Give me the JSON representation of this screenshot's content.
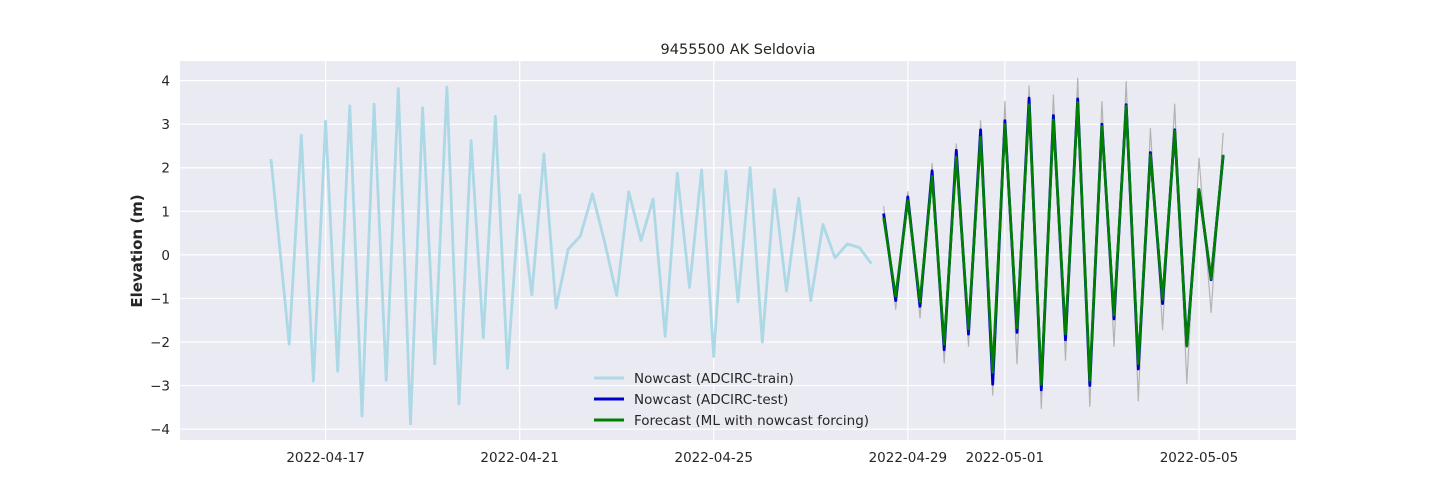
{
  "chart_data": {
    "type": "line",
    "title": "9455500 AK Seldovia",
    "xlabel": "",
    "ylabel": "Elevation (m)",
    "xlim": [
      "2022-04-14T00:00",
      "2022-05-07T00:00"
    ],
    "ylim": [
      -4.25,
      4.45
    ],
    "x_ticks": [
      "2022-04-17",
      "2022-04-21",
      "2022-04-25",
      "2022-04-29",
      "2022-05-01",
      "2022-05-05"
    ],
    "y_ticks": [
      4,
      3,
      2,
      1,
      0,
      -1,
      -2,
      -3,
      -4
    ],
    "y_tick_labels": [
      "4",
      "3",
      "2",
      "1",
      "0",
      "−1",
      "−2",
      "−3",
      "−4"
    ],
    "grid": true,
    "legend_position": "bottom-center",
    "series": [
      {
        "name": "Nowcast (ADCIRC-train)",
        "color": "#add8e6",
        "x": [
          "2022-04-15T21:00",
          "2022-04-16T06:00",
          "2022-04-16T12:00",
          "2022-04-16T18:00",
          "2022-04-17T00:00",
          "2022-04-17T06:00",
          "2022-04-17T12:00",
          "2022-04-17T18:00",
          "2022-04-18T00:00",
          "2022-04-18T06:00",
          "2022-04-18T12:00",
          "2022-04-18T18:00",
          "2022-04-19T00:00",
          "2022-04-19T06:00",
          "2022-04-19T12:00",
          "2022-04-19T18:00",
          "2022-04-20T00:00",
          "2022-04-20T06:00",
          "2022-04-20T12:00",
          "2022-04-20T18:00",
          "2022-04-21T00:00",
          "2022-04-21T06:00",
          "2022-04-21T12:00",
          "2022-04-21T18:00",
          "2022-04-22T00:00",
          "2022-04-22T06:00",
          "2022-04-22T12:00",
          "2022-04-22T18:00",
          "2022-04-23T00:00",
          "2022-04-23T06:00",
          "2022-04-23T12:00",
          "2022-04-23T18:00",
          "2022-04-24T00:00",
          "2022-04-24T06:00",
          "2022-04-24T12:00",
          "2022-04-24T18:00",
          "2022-04-25T00:00",
          "2022-04-25T06:00",
          "2022-04-25T12:00",
          "2022-04-25T18:00",
          "2022-04-26T00:00",
          "2022-04-26T06:00",
          "2022-04-26T12:00",
          "2022-04-26T18:00",
          "2022-04-27T00:00",
          "2022-04-27T06:00",
          "2022-04-27T12:00",
          "2022-04-27T18:00",
          "2022-04-28T00:00",
          "2022-04-28T06:00"
        ],
        "y": [
          2.2,
          -2.05,
          2.75,
          -2.9,
          3.07,
          -2.67,
          3.42,
          -3.7,
          3.46,
          -2.88,
          3.82,
          -3.88,
          3.38,
          -2.5,
          3.85,
          -3.42,
          2.62,
          -1.9,
          3.18,
          -2.6,
          1.37,
          -0.92,
          2.32,
          -1.22,
          0.13,
          0.43,
          1.4,
          0.3,
          -0.93,
          1.45,
          0.33,
          1.28,
          -1.87,
          1.88,
          -0.75,
          1.95,
          -2.33,
          1.92,
          -1.08,
          2.0,
          -2.0,
          1.5,
          -0.83,
          1.3,
          -1.05,
          0.7,
          -0.07,
          0.25,
          0.17,
          -0.2
        ]
      },
      {
        "name": "",
        "color": "#b3b3b3",
        "x": [
          "2022-04-28T12:00",
          "2022-04-28T18:00",
          "2022-04-29T00:00",
          "2022-04-29T06:00",
          "2022-04-29T12:00",
          "2022-04-29T18:00",
          "2022-04-30T00:00",
          "2022-04-30T06:00",
          "2022-04-30T12:00",
          "2022-04-30T18:00",
          "2022-05-01T00:00",
          "2022-05-01T06:00",
          "2022-05-01T12:00",
          "2022-05-01T18:00",
          "2022-05-02T00:00",
          "2022-05-02T06:00",
          "2022-05-02T12:00",
          "2022-05-02T18:00",
          "2022-05-03T00:00",
          "2022-05-03T06:00",
          "2022-05-03T12:00",
          "2022-05-03T18:00",
          "2022-05-04T00:00",
          "2022-05-04T06:00",
          "2022-05-04T12:00",
          "2022-05-04T18:00",
          "2022-05-05T00:00",
          "2022-05-05T06:00",
          "2022-05-05T12:00"
        ],
        "y": [
          1.12,
          -1.25,
          1.45,
          -1.45,
          2.1,
          -2.48,
          2.55,
          -2.1,
          3.08,
          -3.22,
          3.52,
          -2.5,
          3.88,
          -3.53,
          3.67,
          -2.42,
          4.05,
          -3.48,
          3.52,
          -2.1,
          3.98,
          -3.35,
          2.9,
          -1.72,
          3.46,
          -2.95,
          2.22,
          -1.32,
          2.8
        ]
      },
      {
        "name": "Nowcast (ADCIRC-test)",
        "color": "#0000cd",
        "x": [
          "2022-04-28T12:00",
          "2022-04-28T18:00",
          "2022-04-29T00:00",
          "2022-04-29T06:00",
          "2022-04-29T12:00",
          "2022-04-29T18:00",
          "2022-04-30T00:00",
          "2022-04-30T06:00",
          "2022-04-30T12:00",
          "2022-04-30T18:00",
          "2022-05-01T00:00",
          "2022-05-01T06:00",
          "2022-05-01T12:00",
          "2022-05-01T18:00",
          "2022-05-02T00:00",
          "2022-05-02T06:00",
          "2022-05-02T12:00",
          "2022-05-02T18:00",
          "2022-05-03T00:00",
          "2022-05-03T06:00",
          "2022-05-03T12:00",
          "2022-05-03T18:00",
          "2022-05-04T00:00",
          "2022-05-04T06:00",
          "2022-05-04T12:00",
          "2022-05-04T18:00",
          "2022-05-05T00:00",
          "2022-05-05T06:00",
          "2022-05-05T12:00"
        ],
        "y": [
          0.95,
          -1.05,
          1.33,
          -1.18,
          1.93,
          -2.18,
          2.4,
          -1.82,
          2.87,
          -2.97,
          3.08,
          -1.78,
          3.6,
          -3.1,
          3.2,
          -1.95,
          3.58,
          -3.0,
          3.0,
          -1.47,
          3.45,
          -2.62,
          2.35,
          -1.12,
          2.87,
          -2.08,
          1.5,
          -0.57,
          2.28
        ]
      },
      {
        "name": "Forecast (ML with nowcast forcing)",
        "color": "#008000",
        "x": [
          "2022-04-28T12:00",
          "2022-04-28T18:00",
          "2022-04-29T00:00",
          "2022-04-29T06:00",
          "2022-04-29T12:00",
          "2022-04-29T18:00",
          "2022-04-30T00:00",
          "2022-04-30T06:00",
          "2022-04-30T12:00",
          "2022-04-30T18:00",
          "2022-05-01T00:00",
          "2022-05-01T06:00",
          "2022-05-01T12:00",
          "2022-05-01T18:00",
          "2022-05-02T00:00",
          "2022-05-02T06:00",
          "2022-05-02T12:00",
          "2022-05-02T18:00",
          "2022-05-03T00:00",
          "2022-05-03T06:00",
          "2022-05-03T12:00",
          "2022-05-03T18:00",
          "2022-05-04T00:00",
          "2022-05-04T06:00",
          "2022-05-04T12:00",
          "2022-05-04T18:00",
          "2022-05-05T00:00",
          "2022-05-05T06:00",
          "2022-05-05T12:00"
        ],
        "y": [
          0.85,
          -0.95,
          1.25,
          -1.08,
          1.8,
          -2.05,
          2.25,
          -1.7,
          2.7,
          -2.7,
          3.0,
          -1.68,
          3.45,
          -2.98,
          3.1,
          -1.82,
          3.5,
          -2.88,
          2.95,
          -1.38,
          3.42,
          -2.5,
          2.3,
          -1.02,
          2.85,
          -2.1,
          1.5,
          -0.55,
          2.3
        ]
      }
    ],
    "legend": [
      {
        "label": "Nowcast (ADCIRC-train)",
        "color": "#add8e6"
      },
      {
        "label": "Nowcast (ADCIRC-test)",
        "color": "#0000cd"
      },
      {
        "label": "Forecast (ML with nowcast forcing)",
        "color": "#008000"
      }
    ]
  }
}
